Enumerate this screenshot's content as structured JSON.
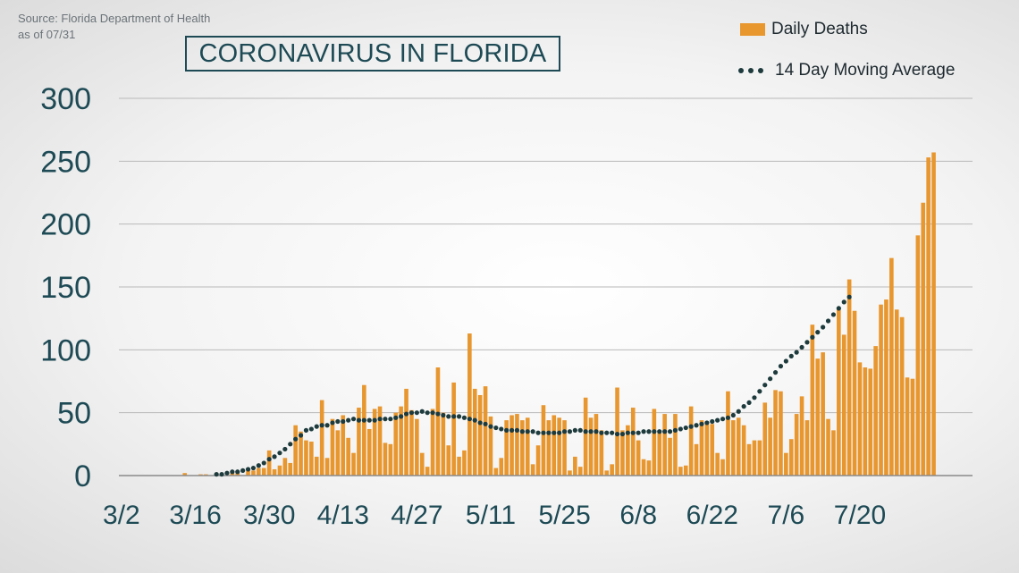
{
  "source": {
    "line1": "Source: Florida Department of Health",
    "line2": "as of 07/31"
  },
  "title": "CORONAVIRUS IN FLORIDA",
  "colors": {
    "bar": "#e8962e",
    "avg": "#1d3a3c",
    "grid": "#b9b9b9",
    "text": "#1d4a55"
  },
  "chart_data": {
    "type": "bar",
    "title": "CORONAVIRUS IN FLORIDA",
    "x_start_date": "3/2",
    "x_tick_labels": [
      "3/2",
      "3/16",
      "3/30",
      "4/13",
      "4/27",
      "5/11",
      "5/25",
      "6/8",
      "6/22",
      "7/6",
      "7/20"
    ],
    "ylim": [
      0,
      300
    ],
    "y_ticks": [
      0,
      50,
      100,
      150,
      200,
      250,
      300
    ],
    "grid": "horizontal",
    "legend_position": "top-right",
    "series": [
      {
        "name": "Daily Deaths",
        "type": "bar",
        "values": [
          0,
          0,
          0,
          0,
          0,
          0,
          0,
          0,
          0,
          0,
          0,
          0,
          2,
          0,
          0,
          1,
          1,
          0,
          2,
          0,
          0,
          2,
          2,
          0,
          4,
          4,
          6,
          6,
          20,
          5,
          8,
          14,
          10,
          40,
          35,
          28,
          27,
          15,
          60,
          14,
          45,
          36,
          48,
          30,
          18,
          54,
          72,
          37,
          53,
          55,
          26,
          25,
          50,
          55,
          69,
          52,
          45,
          18,
          7,
          53,
          86,
          50,
          24,
          74,
          15,
          20,
          113,
          69,
          64,
          71,
          47,
          6,
          14,
          44,
          48,
          49,
          44,
          46,
          9,
          24,
          56,
          44,
          48,
          46,
          44,
          4,
          15,
          7,
          62,
          46,
          49,
          36,
          4,
          9,
          70,
          36,
          40,
          54,
          28,
          13,
          12,
          53,
          36,
          49,
          30,
          49,
          7,
          8,
          55,
          25,
          44,
          43,
          41,
          18,
          13,
          67,
          44,
          46,
          40,
          25,
          28,
          28,
          58,
          46,
          68,
          67,
          18,
          29,
          49,
          63,
          44,
          120,
          93,
          98,
          45,
          36,
          133,
          112,
          156,
          131,
          90,
          86,
          85,
          103,
          136,
          140,
          173,
          132,
          126,
          78,
          77,
          191,
          217,
          253,
          257
        ],
        "legend_label": "Daily Deaths"
      },
      {
        "name": "14 Day Moving Average",
        "type": "dotted-line",
        "start_index": 18,
        "values": [
          1,
          1,
          2,
          3,
          3,
          4,
          5,
          6,
          8,
          10,
          13,
          15,
          18,
          21,
          25,
          29,
          32,
          36,
          37,
          39,
          40,
          40,
          42,
          43,
          43,
          44,
          45,
          44,
          44,
          44,
          44,
          45,
          45,
          45,
          46,
          47,
          49,
          50,
          50,
          51,
          50,
          50,
          49,
          48,
          47,
          47,
          47,
          46,
          45,
          44,
          42,
          41,
          39,
          38,
          37,
          36,
          36,
          36,
          35,
          35,
          35,
          34,
          34,
          34,
          34,
          34,
          35,
          35,
          36,
          36,
          35,
          35,
          35,
          34,
          34,
          34,
          33,
          33,
          34,
          34,
          34,
          35,
          35,
          35,
          35,
          35,
          35,
          36,
          37,
          38,
          39,
          40,
          41,
          42,
          43,
          44,
          45,
          46,
          48,
          51,
          55,
          58,
          62,
          67,
          72,
          77,
          82,
          87,
          91,
          95,
          98,
          102,
          106,
          110,
          114,
          118,
          123,
          128,
          133,
          138,
          142
        ],
        "legend_label": "14 Day Moving Average"
      }
    ]
  }
}
